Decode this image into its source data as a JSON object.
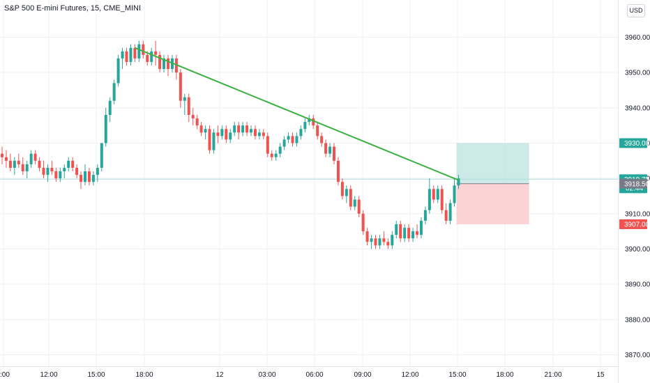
{
  "header": {
    "title": "S&P 500 E-mini Futures, 15, CME_MINI",
    "currency": "USD"
  },
  "colors": {
    "up": "#26a69a",
    "down": "#ef5350",
    "trendline": "#3cb043",
    "grid": "#eef0f3",
    "profit_zone": "#b2dfdb",
    "loss_zone": "#fccbcd",
    "axis_bg": "#ffffff",
    "price_line": "#b2dfdb",
    "gray_label": "#787b86"
  },
  "chart_data": {
    "type": "candlestick",
    "title": "S&P 500 E-mini Futures, 15, CME_MINI",
    "y_axis": {
      "ylim": [
        3866,
        3969
      ],
      "ticks": [
        3960,
        3950,
        3940,
        3930,
        3920,
        3910,
        3900,
        3890,
        3880,
        3870
      ],
      "tick_labels": [
        "3960.00",
        "3950.00",
        "3940.00",
        "3930.00",
        "3920.00",
        "3910.00",
        "3900.00",
        "3890.00",
        "3880.00",
        "3870.00"
      ]
    },
    "x_axis": {
      "tick_labels": [
        ":00",
        "12:00",
        "15:00",
        "18:00",
        "12",
        "03:00",
        "06:00",
        "09:00",
        "12:00",
        "15:00",
        "18:00",
        "21:00",
        "15"
      ]
    },
    "grid": true,
    "candles": [
      [
        3927,
        3929,
        3924,
        3926
      ],
      [
        3926,
        3928,
        3923,
        3925
      ],
      [
        3925,
        3927,
        3922,
        3923
      ],
      [
        3923,
        3926,
        3921,
        3925
      ],
      [
        3925,
        3927,
        3923,
        3924
      ],
      [
        3924,
        3926,
        3921,
        3922
      ],
      [
        3922,
        3925,
        3920,
        3924
      ],
      [
        3924,
        3928,
        3923,
        3927
      ],
      [
        3927,
        3928,
        3924,
        3925
      ],
      [
        3925,
        3926,
        3922,
        3923
      ],
      [
        3923,
        3925,
        3920,
        3921
      ],
      [
        3921,
        3924,
        3919,
        3923
      ],
      [
        3923,
        3925,
        3921,
        3922
      ],
      [
        3922,
        3923,
        3919,
        3920
      ],
      [
        3920,
        3923,
        3919,
        3922
      ],
      [
        3922,
        3924,
        3920,
        3923
      ],
      [
        3923,
        3926,
        3922,
        3925
      ],
      [
        3925,
        3926,
        3922,
        3923
      ],
      [
        3923,
        3924,
        3920,
        3921
      ],
      [
        3921,
        3922,
        3917,
        3919
      ],
      [
        3919,
        3924,
        3918,
        3922
      ],
      [
        3922,
        3923,
        3918,
        3919
      ],
      [
        3919,
        3922,
        3918,
        3921
      ],
      [
        3921,
        3924,
        3919,
        3923
      ],
      [
        3923,
        3930,
        3922,
        3930
      ],
      [
        3930,
        3940,
        3929,
        3938
      ],
      [
        3938,
        3943,
        3936,
        3942
      ],
      [
        3942,
        3948,
        3941,
        3947
      ],
      [
        3947,
        3955,
        3946,
        3954
      ],
      [
        3954,
        3957,
        3951,
        3956
      ],
      [
        3956,
        3957,
        3952,
        3953
      ],
      [
        3953,
        3958,
        3952,
        3957
      ],
      [
        3957,
        3958,
        3953,
        3954
      ],
      [
        3954,
        3959,
        3953,
        3958
      ],
      [
        3958,
        3959,
        3954,
        3955
      ],
      [
        3955,
        3956,
        3952,
        3953
      ],
      [
        3953,
        3957,
        3952,
        3956
      ],
      [
        3956,
        3959,
        3952,
        3955
      ],
      [
        3955,
        3956,
        3950,
        3951
      ],
      [
        3951,
        3955,
        3950,
        3954
      ],
      [
        3954,
        3955,
        3949,
        3951
      ],
      [
        3951,
        3955,
        3950,
        3954
      ],
      [
        3954,
        3955,
        3948,
        3950
      ],
      [
        3950,
        3951,
        3940,
        3942
      ],
      [
        3942,
        3944,
        3938,
        3943
      ],
      [
        3943,
        3944,
        3936,
        3938
      ],
      [
        3938,
        3940,
        3935,
        3937
      ],
      [
        3937,
        3938,
        3934,
        3935
      ],
      [
        3935,
        3936,
        3932,
        3933
      ],
      [
        3933,
        3935,
        3931,
        3934
      ],
      [
        3934,
        3935,
        3927,
        3928
      ],
      [
        3928,
        3934,
        3927,
        3933
      ],
      [
        3933,
        3935,
        3930,
        3932
      ],
      [
        3932,
        3935,
        3931,
        3934
      ],
      [
        3934,
        3935,
        3930,
        3931
      ],
      [
        3931,
        3934,
        3930,
        3933
      ],
      [
        3933,
        3936,
        3932,
        3935
      ],
      [
        3935,
        3936,
        3931,
        3933
      ],
      [
        3933,
        3936,
        3932,
        3935
      ],
      [
        3935,
        3936,
        3932,
        3933
      ],
      [
        3933,
        3935,
        3932,
        3934
      ],
      [
        3934,
        3935,
        3931,
        3932
      ],
      [
        3932,
        3934,
        3931,
        3933
      ],
      [
        3933,
        3934,
        3931,
        3932
      ],
      [
        3932,
        3933,
        3926,
        3927
      ],
      [
        3927,
        3928,
        3925,
        3926
      ],
      [
        3926,
        3928,
        3925,
        3927
      ],
      [
        3927,
        3930,
        3926,
        3929
      ],
      [
        3929,
        3932,
        3928,
        3931
      ],
      [
        3931,
        3933,
        3930,
        3932
      ],
      [
        3932,
        3933,
        3929,
        3930
      ],
      [
        3930,
        3933,
        3929,
        3932
      ],
      [
        3932,
        3935,
        3931,
        3934
      ],
      [
        3934,
        3937,
        3933,
        3936
      ],
      [
        3936,
        3938,
        3935,
        3937
      ],
      [
        3937,
        3938,
        3934,
        3935
      ],
      [
        3935,
        3936,
        3931,
        3932
      ],
      [
        3932,
        3933,
        3929,
        3930
      ],
      [
        3930,
        3931,
        3926,
        3927
      ],
      [
        3927,
        3930,
        3926,
        3929
      ],
      [
        3929,
        3930,
        3924,
        3925
      ],
      [
        3925,
        3926,
        3918,
        3919
      ],
      [
        3919,
        3920,
        3914,
        3915
      ],
      [
        3915,
        3918,
        3913,
        3917
      ],
      [
        3917,
        3918,
        3911,
        3912
      ],
      [
        3912,
        3915,
        3911,
        3914
      ],
      [
        3914,
        3915,
        3909,
        3910
      ],
      [
        3910,
        3911,
        3904,
        3905
      ],
      [
        3905,
        3906,
        3901,
        3902
      ],
      [
        3902,
        3904,
        3900,
        3903
      ],
      [
        3903,
        3904,
        3900,
        3901
      ],
      [
        3901,
        3904,
        3900,
        3903
      ],
      [
        3903,
        3905,
        3901,
        3902
      ],
      [
        3902,
        3903,
        3900,
        3901
      ],
      [
        3901,
        3905,
        3900,
        3904
      ],
      [
        3904,
        3908,
        3903,
        3907
      ],
      [
        3907,
        3908,
        3902,
        3903
      ],
      [
        3903,
        3907,
        3902,
        3906
      ],
      [
        3906,
        3907,
        3902,
        3903
      ],
      [
        3903,
        3906,
        3902,
        3905
      ],
      [
        3905,
        3907,
        3903,
        3904
      ],
      [
        3904,
        3909,
        3903,
        3908
      ],
      [
        3908,
        3912,
        3907,
        3911
      ],
      [
        3911,
        3920,
        3910,
        3917
      ],
      [
        3917,
        3918,
        3913,
        3914
      ],
      [
        3914,
        3918,
        3913,
        3917
      ],
      [
        3917,
        3918,
        3910,
        3911
      ],
      [
        3911,
        3913,
        3907,
        3908
      ],
      [
        3908,
        3914,
        3907,
        3913
      ],
      [
        3913,
        3920,
        3912,
        3918
      ],
      [
        3918,
        3921,
        3917,
        3920
      ]
    ]
  },
  "trendline": {
    "start": {
      "index": 32,
      "price": 3957
    },
    "end": {
      "index": 110,
      "price": 3919.5
    }
  },
  "position": {
    "entry": 3918.5,
    "target": 3930.0,
    "stop": 3907.0,
    "start_index": 110,
    "end_index": 127
  },
  "price_labels": {
    "last": "3919.75",
    "countdown": "02:44",
    "entry": "3918.50",
    "target": "3930.00",
    "stop": "3907.00"
  }
}
